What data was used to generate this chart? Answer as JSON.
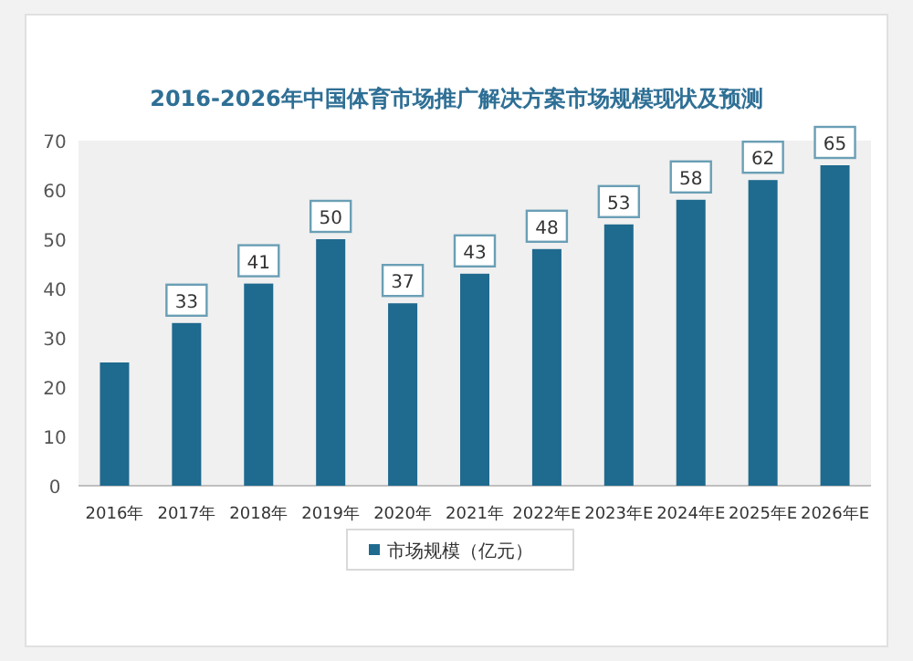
{
  "chart_data": {
    "type": "bar",
    "title": "2016-2026年中国体育市场推广解决方案市场规模现状及预测",
    "categories": [
      "2016年",
      "2017年",
      "2018年",
      "2019年",
      "2020年",
      "2021年",
      "2022年E",
      "2023年E",
      "2024年E",
      "2025年E",
      "2026年E"
    ],
    "series": [
      {
        "name": "市场规模（亿元）",
        "color": "#1f6a8f",
        "values": [
          25,
          33,
          41,
          50,
          37,
          43,
          48,
          53,
          58,
          62,
          65
        ],
        "value_labels": [
          null,
          "33",
          "41",
          "50",
          "37",
          "43",
          "48",
          "53",
          "58",
          "62",
          "65"
        ]
      }
    ],
    "ylim": [
      0,
      70
    ],
    "yticks": [
      0,
      10,
      20,
      30,
      40,
      50,
      60,
      70
    ],
    "grid": false,
    "legend": "bottom"
  }
}
